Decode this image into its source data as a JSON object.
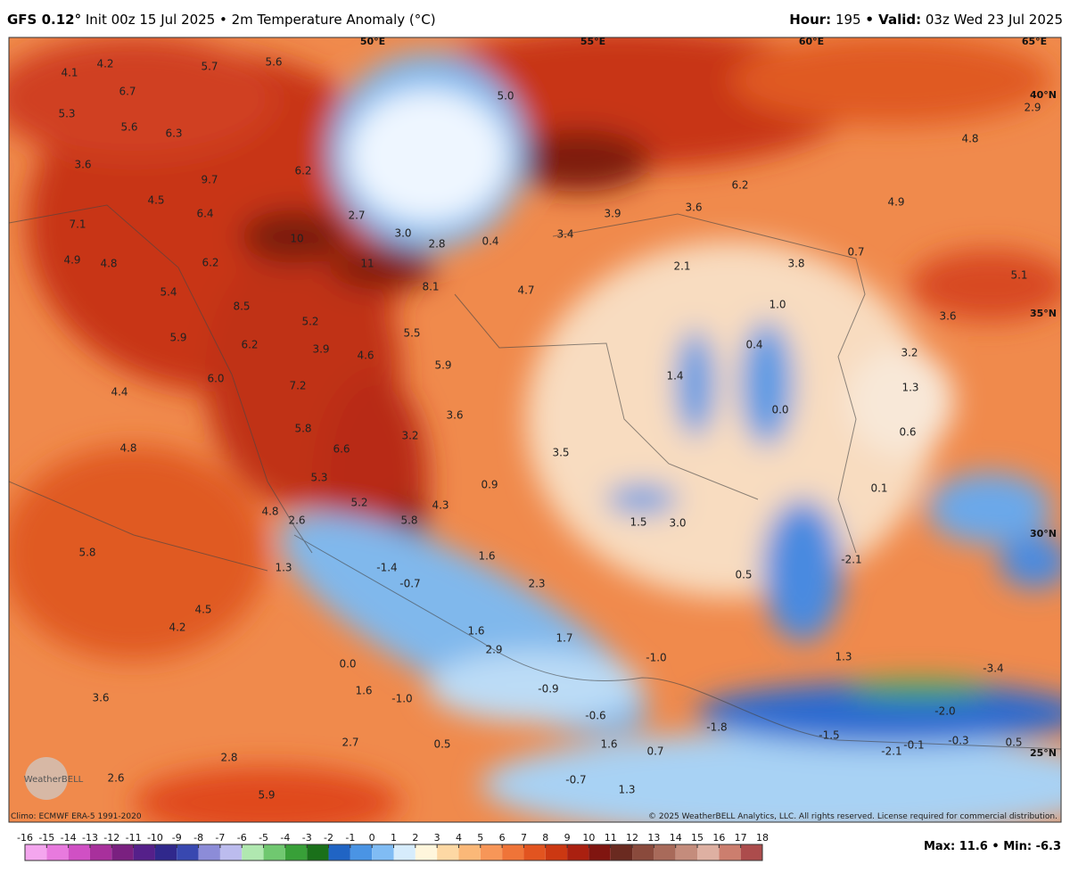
{
  "header": {
    "model": "GFS 0.12°",
    "init": "Init 00z 15 Jul 2025 • 2m Temperature Anomaly (°C)",
    "hour_label": "Hour:",
    "hour": "195",
    "valid_label": "• Valid:",
    "valid": "03z Wed 23 Jul 2025"
  },
  "map": {
    "gridlabels": [
      "50°E",
      "55°E",
      "60°E",
      "65°E",
      "40°N",
      "35°N",
      "30°N",
      "25°N"
    ],
    "labels": [
      "4.1",
      "4.2",
      "5.7",
      "5.6",
      "6.7",
      "5.3",
      "5.6",
      "6.3",
      "3.6",
      "9.7",
      "6.2",
      "4.5",
      "6.4",
      "10",
      "7.1",
      "2.7",
      "3.0",
      "2.8",
      "0.4",
      "3.4",
      "3.9",
      "3.6",
      "6.2",
      "5.0",
      "2.9",
      "4.8",
      "4.9",
      "0.7",
      "11",
      "8.1",
      "4.7",
      "2.1",
      "3.8",
      "4.9",
      "4.8",
      "6.2",
      "5.4",
      "1.0",
      "5.1",
      "3.6",
      "8.5",
      "5.2",
      "5.9",
      "6.2",
      "3.9",
      "4.6",
      "5.5",
      "0.4",
      "3.2",
      "5.9",
      "1.4",
      "1.3",
      "6.0",
      "7.2",
      "0.0",
      "4.4",
      "3.6",
      "5.8",
      "3.2",
      "0.6",
      "4.8",
      "6.6",
      "3.5",
      "5.3",
      "0.9",
      "0.1",
      "5.2",
      "4.8",
      "2.6",
      "4.3",
      "5.8",
      "1.5",
      "3.0",
      "5.8",
      "1.6",
      "-1.4",
      "-0.7",
      "-2.1",
      "1.3",
      "0.5",
      "2.3",
      "4.5",
      "4.2",
      "1.6",
      "1.7",
      "2.9",
      "1.3",
      "-1.0",
      "0.0",
      "-3.4",
      "-0.9",
      "3.6",
      "1.6",
      "-1.0",
      "-2.0",
      "-0.6",
      "-1.8",
      "-1.5",
      "-0.1",
      "-0.3",
      "0.5",
      "2.7",
      "0.5",
      "-2.1",
      "2.8",
      "1.6",
      "0.7",
      "2.6",
      "-0.7",
      "1.3",
      "5.9"
    ],
    "logo": "WeatherBELL"
  },
  "footer": {
    "climo": "Climo: ECMWF ERA-5 1991-2020",
    "copyright": "© 2025 WeatherBELL Analytics, LLC. All rights reserved. License required for commercial distribution.",
    "stats": "Max: 11.6 • Min: -6.3"
  },
  "colorbar": {
    "ticks": [
      -16,
      -15,
      -14,
      -13,
      -12,
      -11,
      -10,
      -9,
      -8,
      -7,
      -6,
      -5,
      -4,
      -3,
      -2,
      -1,
      0,
      1,
      2,
      3,
      4,
      5,
      6,
      7,
      8,
      9,
      10,
      11,
      12,
      13,
      14,
      15,
      16,
      17,
      18
    ],
    "colors": [
      "#f4a6ee",
      "#e87ade",
      "#d050c4",
      "#a8309c",
      "#7a2080",
      "#55208a",
      "#30288c",
      "#3848b0",
      "#8c8cd8",
      "#bcbcee",
      "#b0e8b0",
      "#70c870",
      "#38a038",
      "#1a701a",
      "#2064c4",
      "#4a94e4",
      "#80bcf4",
      "#d6ecfc",
      "#fff6dc",
      "#fdd8a4",
      "#fbb878",
      "#f79658",
      "#ef7438",
      "#e25420",
      "#cc3812",
      "#aa2010",
      "#801510",
      "#6a2a20",
      "#8a4a3c",
      "#a86a5a",
      "#c48c7c",
      "#deb0a2",
      "#cc7e6e",
      "#ac4c4c"
    ]
  }
}
